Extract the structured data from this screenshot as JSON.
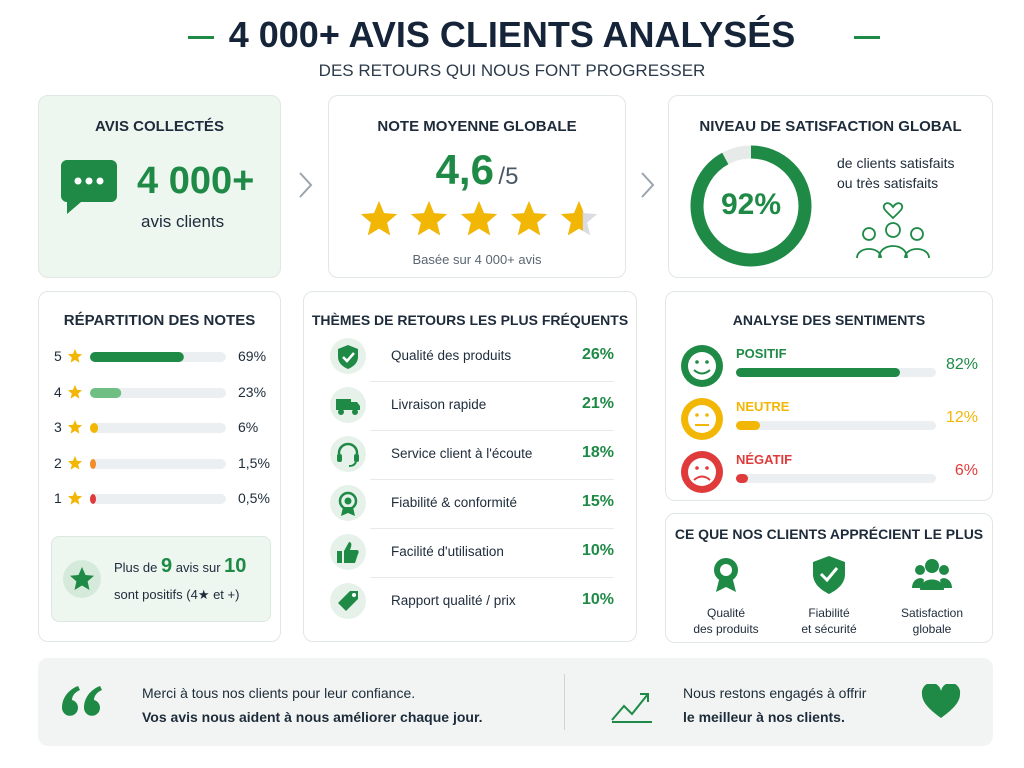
{
  "header": {
    "title": "4 000+ AVIS CLIENTS ANALYSÉS",
    "subtitle": "DES RETOURS QUI NOUS FONT PROGRESSER"
  },
  "kpis": {
    "collected": {
      "title": "AVIS COLLECTÉS",
      "value": "4 000+",
      "caption": "avis clients"
    },
    "rating": {
      "title": "NOTE MOYENNE GLOBALE",
      "value": 4.6,
      "label": "4,6",
      "max": 5,
      "max_label": "/5",
      "caption": "Basée sur 4 000+ avis"
    },
    "satisfaction": {
      "title": "NIVEAU DE SATISFACTION GLOBAL",
      "value": 92,
      "label": "92%",
      "caption": [
        "de clients satisfaits",
        "ou très satisfaits"
      ]
    }
  },
  "distribution": {
    "title": "RÉPARTITION DES NOTES",
    "rows": [
      {
        "stars": "5",
        "value": 69,
        "label": "69%",
        "color": "#1e8a46"
      },
      {
        "stars": "4",
        "value": 23,
        "label": "23%",
        "color": "#6fbf84"
      },
      {
        "stars": "3",
        "value": 6,
        "label": "6%",
        "color": "#f2b705"
      },
      {
        "stars": "2",
        "value": 1.5,
        "label": "1,5%",
        "color": "#f28c28"
      },
      {
        "stars": "1",
        "value": 0.5,
        "label": "0,5%",
        "color": "#e03b3b"
      }
    ],
    "summary": {
      "prefix": "Plus de",
      "count": "9",
      "middle": "avis sur",
      "total": "10",
      "suffix": "sont positifs (4★ et +)"
    }
  },
  "themes": {
    "title": "THÈMES DE RETOURS LES PLUS FRÉQUENTS",
    "rows": [
      {
        "label": "Qualité des produits",
        "value": 26,
        "value_label": "26%"
      },
      {
        "label": "Livraison rapide",
        "value": 21,
        "value_label": "21%"
      },
      {
        "label": "Service client à l'écoute",
        "value": 18,
        "value_label": "18%"
      },
      {
        "label": "Fiabilité & conformité",
        "value": 15,
        "value_label": "15%"
      },
      {
        "label": "Facilité d'utilisation",
        "value": 10,
        "value_label": "10%"
      },
      {
        "label": "Rapport qualité / prix",
        "value": 10,
        "value_label": "10%"
      }
    ]
  },
  "sentiments": {
    "title": "ANALYSE DES SENTIMENTS",
    "rows": [
      {
        "name": "POSITIF",
        "value": 82,
        "label": "82%",
        "color": "#1e8a46"
      },
      {
        "name": "NEUTRE",
        "value": 12,
        "label": "12%",
        "color": "#f2b705"
      },
      {
        "name": "NÉGATIF",
        "value": 6,
        "label": "6%",
        "color": "#e03b3b"
      }
    ]
  },
  "appreciated": {
    "title": "CE QUE NOS CLIENTS APPRÉCIENT LE PLUS",
    "items": [
      {
        "lines": [
          "Qualité",
          "des produits"
        ]
      },
      {
        "lines": [
          "Fiabilité",
          "et sécurité"
        ]
      },
      {
        "lines": [
          "Satisfaction",
          "globale"
        ]
      }
    ]
  },
  "footer": {
    "left": [
      "Merci à tous nos clients pour leur confiance.",
      "Vos avis nous aident à nous améliorer chaque jour."
    ],
    "right": [
      "Nous restons engagés à offrir",
      "le meilleur à nos clients."
    ]
  }
}
